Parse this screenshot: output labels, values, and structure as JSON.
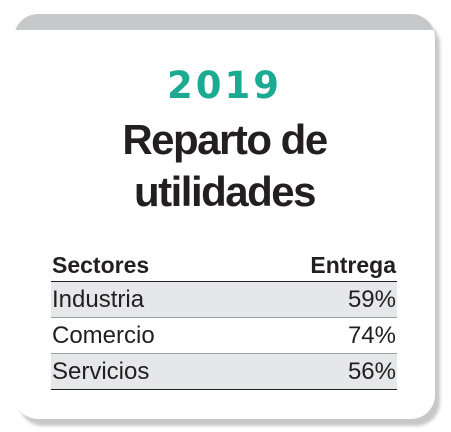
{
  "year": "2019",
  "title": {
    "line1": "Reparto de",
    "line2": "utilidades"
  },
  "table": {
    "headers": [
      "Sectores",
      "Entrega"
    ],
    "rows": [
      [
        "Industria",
        "59%"
      ],
      [
        "Comercio",
        "74%"
      ],
      [
        "Servicios",
        "56%"
      ]
    ]
  },
  "colors": {
    "accent": "#1baa92",
    "text": "#231f20",
    "top_bar": "#c7c8c9",
    "row_shade": "#e6e7e8"
  }
}
